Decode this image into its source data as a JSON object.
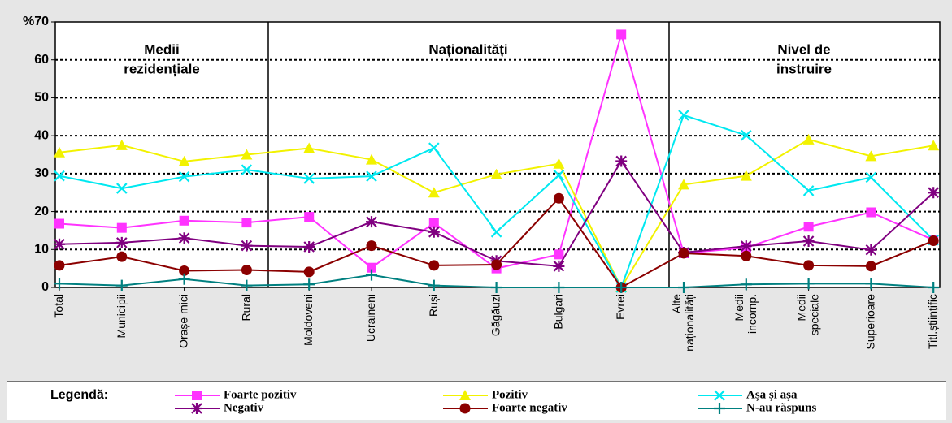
{
  "chart_data": {
    "type": "line",
    "legend_title": "Legendă:",
    "sections": [
      [
        "Medii",
        "rezidențiale"
      ],
      [
        "Naționalități"
      ],
      [
        "Nivel de",
        "instruire"
      ]
    ],
    "categories": [
      "Total",
      "Municipii",
      "Orașe mici",
      "Rural",
      "Moldoveni",
      "Ucraineni",
      "Ruși",
      "Găgăuzi",
      "Bulgari",
      "Evrei",
      "Alte\nnaționalități",
      "Medii\nincomp.",
      "Medii\nspeciale",
      "Superioare",
      "Titl.științific"
    ],
    "ylim": [
      0,
      70
    ],
    "yticks": [
      0,
      10,
      20,
      30,
      40,
      50,
      60,
      {
        "value": 70,
        "label": "%70"
      }
    ],
    "grid": true,
    "series": [
      {
        "name": "Foarte pozitiv",
        "color": "#ff33ff",
        "marker": "square",
        "values": [
          16.8,
          15.7,
          17.6,
          17.1,
          18.6,
          5.2,
          17,
          5,
          8.7,
          66.7,
          9,
          10.5,
          16,
          19.8,
          12.5
        ]
      },
      {
        "name": "Pozitiv",
        "color": "#f2f200",
        "marker": "triangle",
        "values": [
          35.6,
          37.5,
          33.2,
          35,
          36.7,
          33.7,
          25,
          29.8,
          32.6,
          0,
          27.1,
          29.4,
          39,
          34.6,
          37.4
        ]
      },
      {
        "name": "Așa și așa",
        "color": "#00e8f0",
        "marker": "x",
        "values": [
          29.4,
          26.1,
          29.2,
          31,
          28.7,
          29.3,
          36.8,
          14.6,
          29.6,
          0,
          45.4,
          40.1,
          25.5,
          29,
          12.5
        ]
      },
      {
        "name": "Negativ",
        "color": "#800080",
        "marker": "star",
        "values": [
          11.4,
          11.8,
          13,
          11,
          10.7,
          17.3,
          14.6,
          7,
          5.6,
          33.3,
          9.2,
          10.9,
          12.2,
          9.9,
          25
        ]
      },
      {
        "name": "Foarte negativ",
        "color": "#8b0000",
        "marker": "circle",
        "values": [
          5.8,
          8.1,
          4.4,
          4.6,
          4.1,
          11,
          5.8,
          6,
          23.5,
          0,
          9,
          8.3,
          5.8,
          5.6,
          12.3
        ]
      },
      {
        "name": "N-au răspuns",
        "color": "#008080",
        "marker": "plus",
        "values": [
          1,
          0.5,
          2.2,
          0.5,
          0.8,
          3.3,
          0.5,
          0,
          0,
          0,
          0,
          0.8,
          1,
          1,
          0
        ]
      }
    ]
  }
}
